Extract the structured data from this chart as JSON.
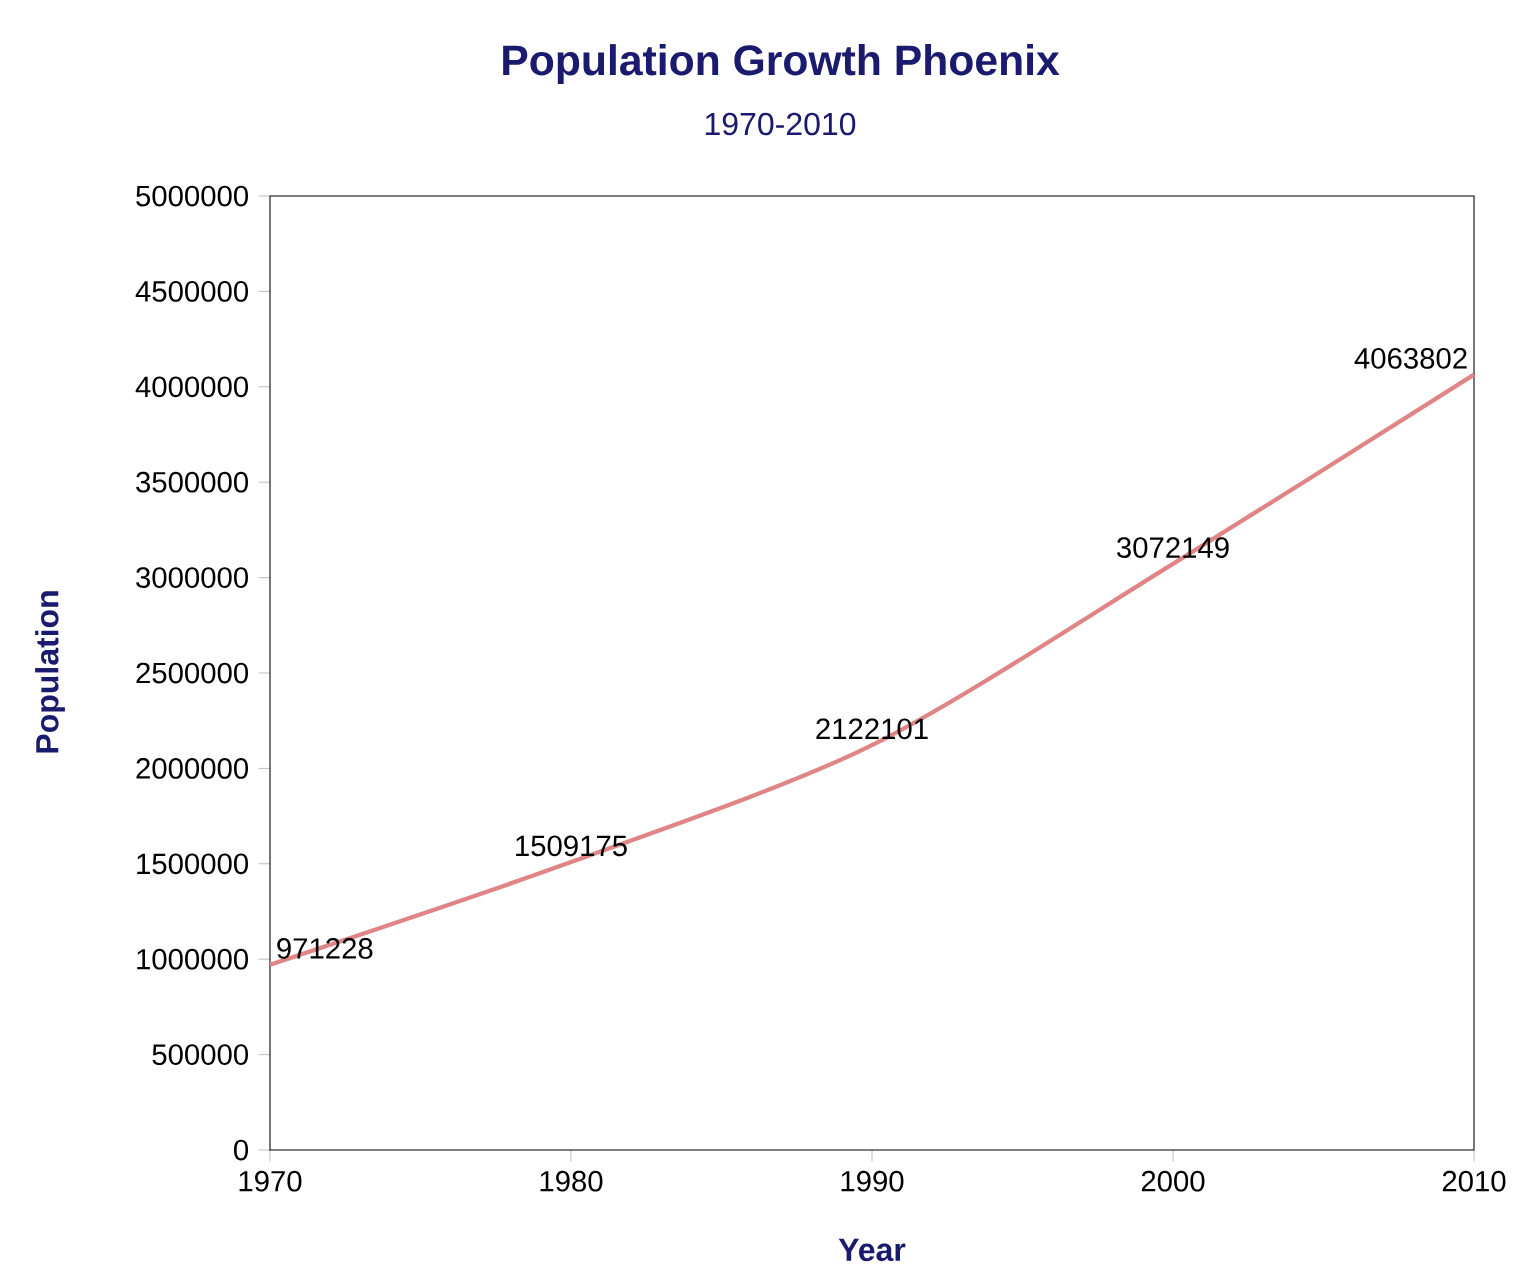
{
  "chart_data": {
    "type": "line",
    "title": "Population Growth Phoenix",
    "subtitle": "1970-2010",
    "xlabel": "Year",
    "ylabel": "Population",
    "x": [
      1970,
      1980,
      1990,
      2000,
      2010
    ],
    "values": [
      971228,
      1509175,
      2122101,
      3072149,
      4063802
    ],
    "color": "#e08585",
    "line_style": "solid",
    "marker": "none",
    "data_labels": true,
    "xlim": [
      1970,
      2010
    ],
    "ylim": [
      0,
      5000000
    ],
    "xticks": [
      1970,
      1980,
      1990,
      2000,
      2010
    ],
    "yticks": [
      0,
      500000,
      1000000,
      1500000,
      2000000,
      2500000,
      3000000,
      3500000,
      4000000,
      4500000,
      5000000
    ]
  }
}
